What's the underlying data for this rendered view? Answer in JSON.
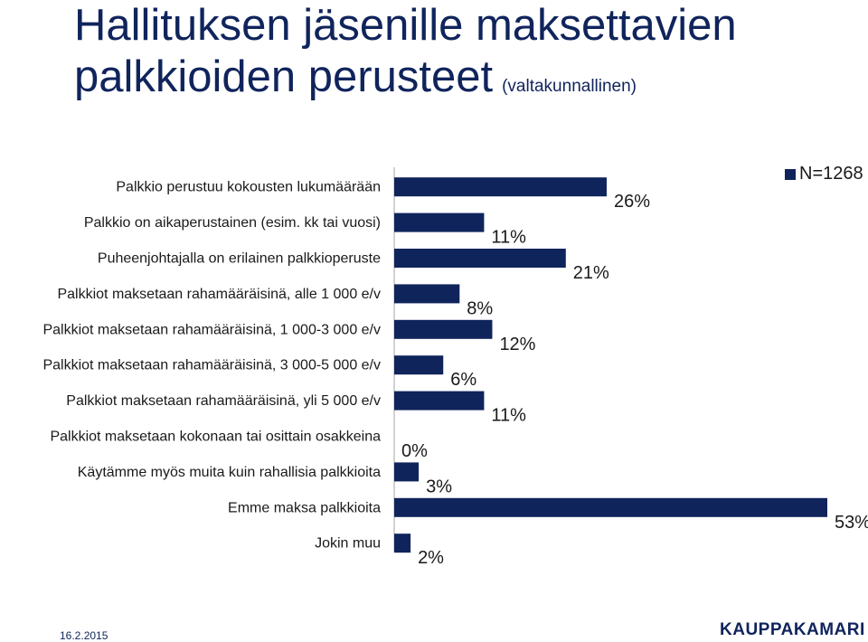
{
  "title": {
    "line1": "Hallituksen jäsenille maksettavien",
    "line2": "palkkioiden perusteet",
    "subtitle": "(valtakunnallinen)"
  },
  "legend": {
    "label": "N=1268",
    "color": "#10245c"
  },
  "footer": {
    "date": "16.2.2015",
    "logo": "KAUPPAKAMARI"
  },
  "chart_data": {
    "type": "bar",
    "orientation": "horizontal",
    "categories": [
      "Palkkio perustuu kokousten lukumäärään",
      "Palkkio on aikaperustainen (esim. kk tai vuosi)",
      "Puheenjohtajalla on erilainen palkkioperuste",
      "Palkkiot maksetaan rahamääräisinä, alle 1 000 e/v",
      "Palkkiot maksetaan rahamääräisinä, 1 000-3 000 e/v",
      "Palkkiot maksetaan rahamääräisinä, 3 000-5 000 e/v",
      "Palkkiot maksetaan rahamääräisinä, yli 5 000 e/v",
      "Palkkiot maksetaan kokonaan tai osittain osakkeina",
      "Käytämme myös muita kuin rahallisia palkkioita",
      "Emme maksa palkkioita",
      "Jokin muu"
    ],
    "series": [
      {
        "name": "N=1268",
        "values": [
          26,
          11,
          21,
          8,
          12,
          6,
          11,
          0,
          3,
          53,
          2
        ],
        "labels": [
          "26%",
          "11%",
          "21%",
          "8%",
          "12%",
          "6%",
          "11%",
          "0%",
          "3%",
          "53%",
          "2%"
        ],
        "color": "#10245c"
      }
    ],
    "xlim": [
      0,
      53
    ],
    "grid": false,
    "legend_position": "top-right"
  }
}
